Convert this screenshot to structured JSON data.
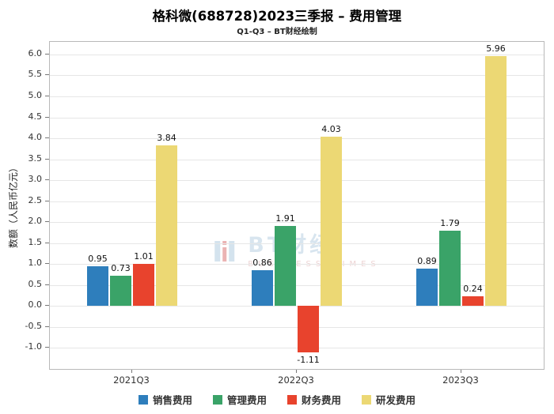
{
  "title": "格科微(688728)2023三季报 – 费用管理",
  "subtitle": "Q1-Q3 – BT财经绘制",
  "watermark": {
    "text": "BT财经",
    "subtext": "BUSINESS TIMES"
  },
  "chart_data": {
    "type": "bar",
    "title": "格科微(688728)2023三季报 – 费用管理",
    "subtitle": "Q1-Q3 – BT财经绘制",
    "categories": [
      "2021Q3",
      "2022Q3",
      "2023Q3"
    ],
    "series": [
      {
        "name": "销售费用",
        "color": "#2e7ebc",
        "values": [
          0.95,
          0.86,
          0.89
        ]
      },
      {
        "name": "管理费用",
        "color": "#3aa368",
        "values": [
          0.73,
          1.91,
          1.79
        ]
      },
      {
        "name": "财务费用",
        "color": "#e8432d",
        "values": [
          1.01,
          -1.11,
          0.24
        ]
      },
      {
        "name": "研发费用",
        "color": "#ecd874",
        "values": [
          3.84,
          4.03,
          5.96
        ]
      }
    ],
    "xlabel": "",
    "ylabel": "数额（人民币亿元）",
    "ylim": [
      -1.5,
      6.3
    ],
    "yticks": [
      6.0,
      5.5,
      5.0,
      4.5,
      4.0,
      3.5,
      3.0,
      2.5,
      2.0,
      1.5,
      1.0,
      0.5,
      0.0,
      -0.5,
      -1.0
    ],
    "grid": true,
    "legend_position": "bottom"
  }
}
